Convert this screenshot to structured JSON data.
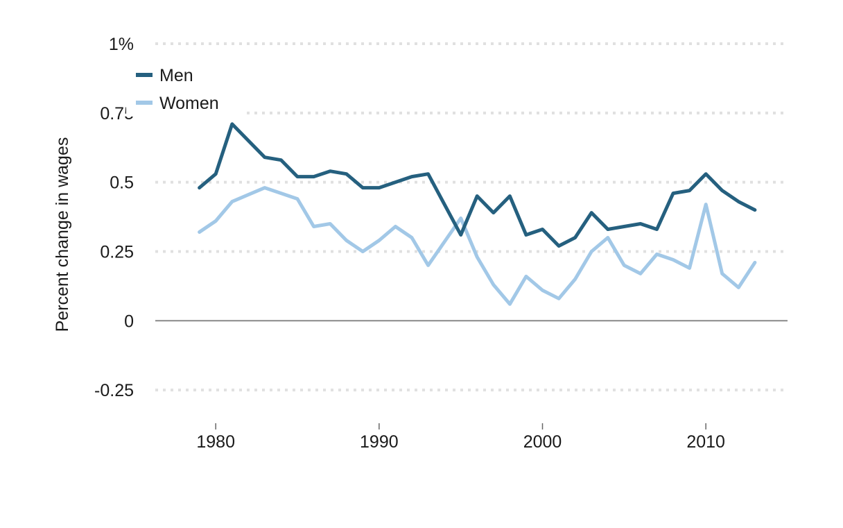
{
  "chart_data": {
    "type": "line",
    "title": "",
    "xlabel": "",
    "ylabel": "Percent change in wages",
    "xlim": [
      1976.3,
      2015
    ],
    "ylim": [
      -0.37,
      1.0
    ],
    "x_ticks": [
      1980,
      1990,
      2000,
      2010
    ],
    "x_tick_labels": [
      "1980",
      "1990",
      "2000",
      "2010"
    ],
    "y_ticks": [
      1,
      0.75,
      0.5,
      0.25,
      0,
      -0.25
    ],
    "y_tick_labels": [
      "1%",
      "0.75",
      "0.5",
      "0.25",
      "0",
      "-0.25"
    ],
    "grid": true,
    "legend_position": "top-left",
    "x": [
      1979,
      1980,
      1981,
      1982,
      1983,
      1984,
      1985,
      1986,
      1987,
      1988,
      1989,
      1990,
      1991,
      1992,
      1993,
      1994,
      1995,
      1996,
      1997,
      1998,
      1999,
      2000,
      2001,
      2002,
      2003,
      2004,
      2005,
      2006,
      2007,
      2008,
      2009,
      2010,
      2011,
      2012,
      2013
    ],
    "series": [
      {
        "name": "Men",
        "color": "#25607f",
        "values": [
          0.48,
          0.53,
          0.71,
          0.65,
          0.59,
          0.58,
          0.52,
          0.52,
          0.54,
          0.53,
          0.48,
          0.48,
          0.5,
          0.52,
          0.53,
          0.42,
          0.31,
          0.45,
          0.39,
          0.45,
          0.31,
          0.33,
          0.27,
          0.3,
          0.39,
          0.33,
          0.34,
          0.35,
          0.33,
          0.46,
          0.47,
          0.53,
          0.47,
          0.43,
          0.4
        ]
      },
      {
        "name": "Women",
        "color": "#a2c8e7",
        "values": [
          0.32,
          0.36,
          0.43,
          0.455,
          0.48,
          0.46,
          0.44,
          0.34,
          0.35,
          0.29,
          0.25,
          0.29,
          0.34,
          0.3,
          0.2,
          0.285,
          0.37,
          0.23,
          0.13,
          0.06,
          0.16,
          0.11,
          0.08,
          0.15,
          0.25,
          0.3,
          0.2,
          0.17,
          0.24,
          0.22,
          0.19,
          0.42,
          0.17,
          0.12,
          0.21
        ]
      }
    ],
    "gridline_color": "#e0e0e0",
    "zero_line_color": "#888888"
  }
}
